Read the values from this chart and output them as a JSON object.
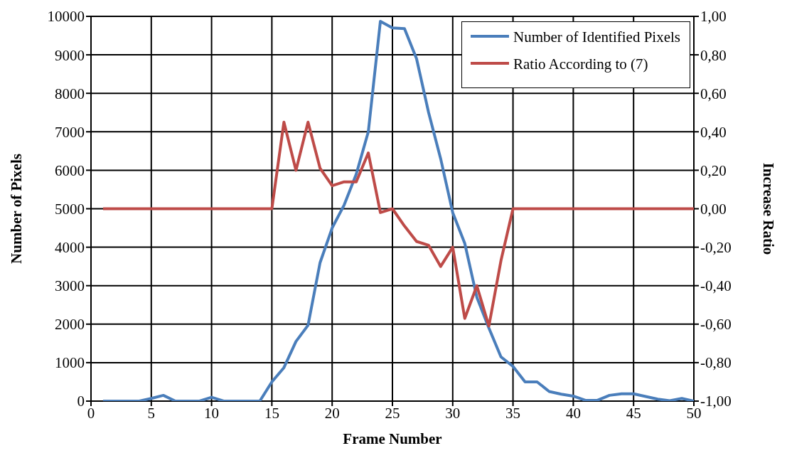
{
  "chart_data": {
    "type": "line",
    "xlabel": "Frame Number",
    "ylabel": "Number of Pixels",
    "y2label": "Increase Ratio",
    "x": [
      1,
      2,
      3,
      4,
      5,
      6,
      7,
      8,
      9,
      10,
      11,
      12,
      13,
      14,
      15,
      16,
      17,
      18,
      19,
      20,
      21,
      22,
      23,
      24,
      25,
      26,
      27,
      28,
      29,
      30,
      31,
      32,
      33,
      34,
      35,
      36,
      37,
      38,
      39,
      40,
      41,
      42,
      43,
      44,
      45,
      46,
      47,
      48,
      49,
      50
    ],
    "series": [
      {
        "name": "Number of Identified Pixels",
        "color": "#4a7ebb",
        "values": [
          0,
          0,
          0,
          0,
          70,
          150,
          0,
          0,
          0,
          100,
          0,
          0,
          0,
          0,
          500,
          870,
          1550,
          1970,
          3600,
          4500,
          5100,
          5900,
          7000,
          9870,
          9700,
          9680,
          8900,
          7500,
          6300,
          4900,
          4100,
          2700,
          1900,
          1150,
          900,
          500,
          500,
          250,
          180,
          130,
          20,
          20,
          150,
          190,
          190,
          120,
          50,
          10,
          70,
          0
        ]
      },
      {
        "name": "Ratio According to (7)",
        "color": "#be4b48",
        "axis": "y2",
        "values": [
          0,
          0,
          0,
          0,
          0,
          0,
          0,
          0,
          0,
          0,
          0,
          0,
          0,
          0,
          0,
          0.45,
          0.2,
          0.45,
          0.21,
          0.12,
          0.14,
          0.14,
          0.29,
          -0.02,
          0,
          -0.09,
          -0.17,
          -0.19,
          -0.3,
          -0.2,
          -0.57,
          -0.4,
          -0.61,
          -0.27,
          0,
          0,
          0,
          0,
          0,
          0,
          0,
          0,
          0,
          0,
          0,
          0,
          0,
          0,
          0,
          0
        ]
      }
    ],
    "xlim": [
      0,
      50
    ],
    "xticks": [
      0,
      5,
      10,
      15,
      20,
      25,
      30,
      35,
      40,
      45,
      50
    ],
    "ylim": [
      0,
      10000
    ],
    "yticks": [
      0,
      1000,
      2000,
      3000,
      4000,
      5000,
      6000,
      7000,
      8000,
      9000,
      10000
    ],
    "y2lim": [
      -1,
      1
    ],
    "y2ticks": [
      {
        "value": -1,
        "label": "-1,00"
      },
      {
        "value": -0.8,
        "label": "-0,80"
      },
      {
        "value": -0.6,
        "label": "-0,60"
      },
      {
        "value": -0.4,
        "label": "-0,40"
      },
      {
        "value": -0.2,
        "label": "-0,20"
      },
      {
        "value": 0,
        "label": "0,00"
      },
      {
        "value": 0.2,
        "label": "0,20"
      },
      {
        "value": 0.4,
        "label": "0,40"
      },
      {
        "value": 0.6,
        "label": "0,60"
      },
      {
        "value": 0.8,
        "label": "0,80"
      },
      {
        "value": 1,
        "label": "1,00"
      }
    ],
    "grid": true,
    "legend": "top right",
    "marker": "none",
    "line_style": "solid"
  }
}
